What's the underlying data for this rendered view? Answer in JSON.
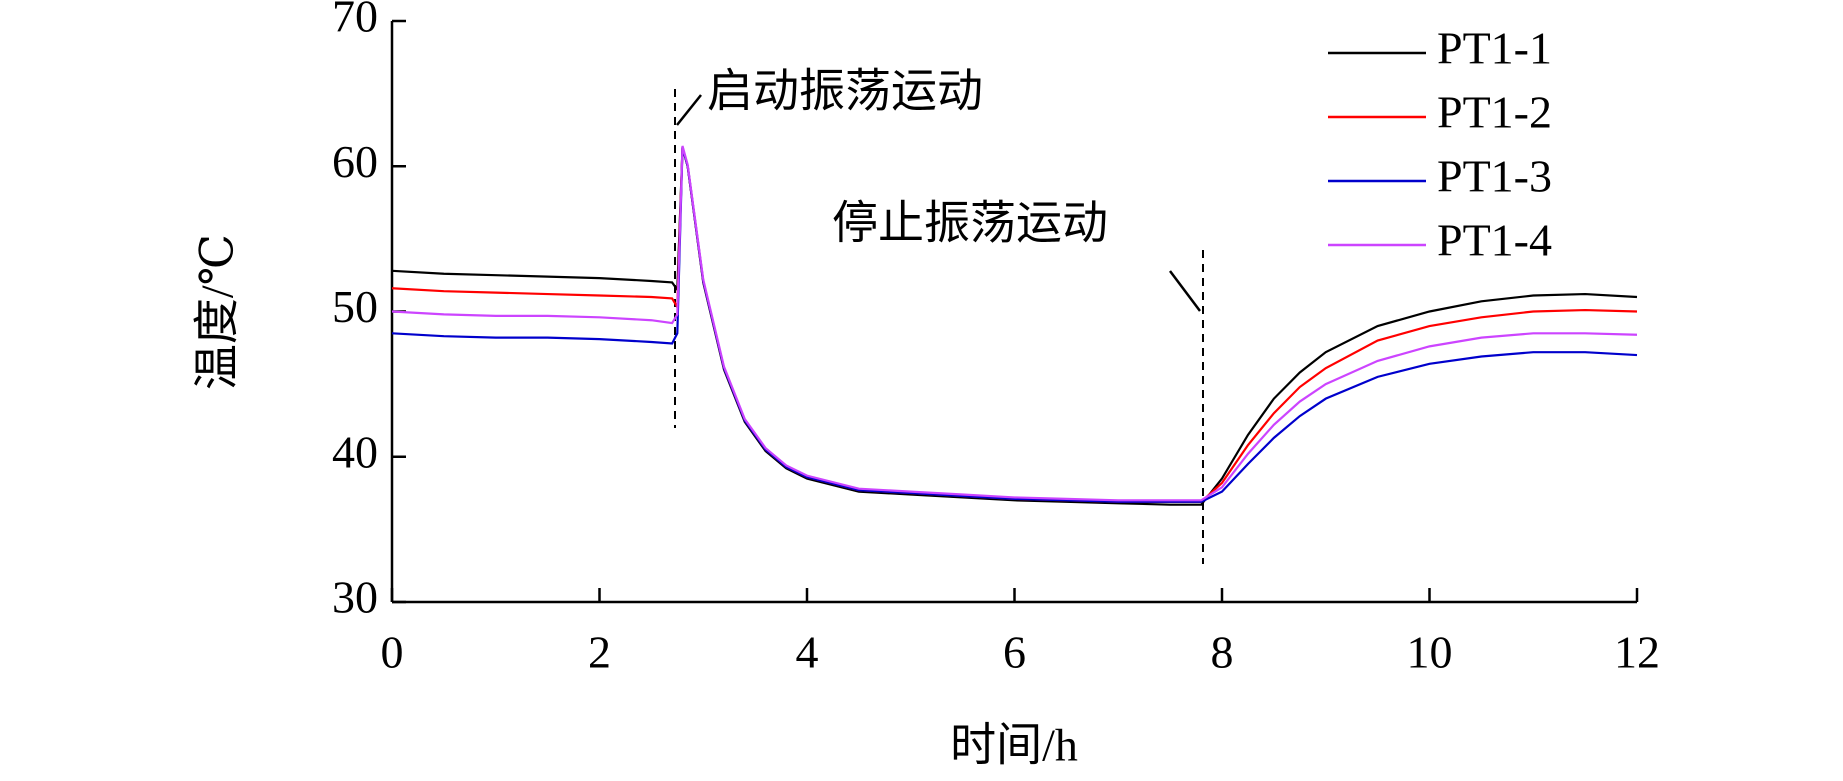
{
  "chart_data": {
    "type": "line",
    "xlabel": "时间/h",
    "ylabel": "温度/℃",
    "annotations": [
      "启动振荡运动",
      "停止振荡运动"
    ],
    "xlim": [
      0,
      12
    ],
    "xticks": [
      0,
      2,
      4,
      6,
      8,
      10,
      12
    ],
    "ylim": [
      30,
      70
    ],
    "yticks": [
      30,
      40,
      50,
      60,
      70
    ],
    "legend": "top-right",
    "x": [
      0,
      0.5,
      1,
      1.5,
      2,
      2.5,
      2.7,
      2.75,
      2.8,
      2.85,
      3.0,
      3.2,
      3.4,
      3.6,
      3.8,
      4.0,
      4.5,
      5,
      5.5,
      6,
      6.5,
      7,
      7.5,
      7.8,
      8.0,
      8.25,
      8.5,
      8.75,
      9,
      9.5,
      10,
      10.5,
      11,
      11.5,
      12
    ],
    "series": [
      {
        "name": "PT1-1",
        "color": "#000000",
        "values": [
          52.8,
          52.6,
          52.5,
          52.4,
          52.3,
          52.1,
          52.0,
          51.5,
          61.3,
          60.0,
          52.0,
          46.0,
          42.4,
          40.4,
          39.2,
          38.5,
          37.6,
          37.4,
          37.2,
          37.0,
          36.9,
          36.8,
          36.7,
          36.7,
          38.5,
          41.5,
          44.0,
          45.8,
          47.2,
          49.0,
          50.0,
          50.7,
          51.1,
          51.2,
          51.0
        ]
      },
      {
        "name": "PT1-2",
        "color": "#ff0000",
        "values": [
          51.6,
          51.4,
          51.3,
          51.2,
          51.1,
          51.0,
          50.9,
          50.3,
          61.3,
          60.0,
          52.1,
          46.1,
          42.5,
          40.5,
          39.3,
          38.6,
          37.7,
          37.5,
          37.3,
          37.1,
          37.0,
          36.9,
          36.9,
          36.9,
          38.2,
          40.8,
          43.0,
          44.8,
          46.1,
          48.0,
          49.0,
          49.6,
          50.0,
          50.1,
          50.0
        ]
      },
      {
        "name": "PT1-3",
        "color": "#0000cc",
        "values": [
          48.5,
          48.3,
          48.2,
          48.2,
          48.1,
          47.9,
          47.8,
          48.5,
          61.3,
          60.0,
          52.1,
          46.1,
          42.5,
          40.5,
          39.3,
          38.6,
          37.7,
          37.5,
          37.3,
          37.1,
          37.0,
          36.9,
          36.9,
          36.9,
          37.6,
          39.5,
          41.3,
          42.8,
          44.0,
          45.5,
          46.4,
          46.9,
          47.2,
          47.2,
          47.0
        ]
      },
      {
        "name": "PT1-4",
        "color": "#cc44ff",
        "values": [
          50.0,
          49.8,
          49.7,
          49.7,
          49.6,
          49.4,
          49.2,
          49.8,
          61.4,
          60.1,
          52.2,
          46.2,
          42.6,
          40.6,
          39.4,
          38.7,
          37.8,
          37.6,
          37.4,
          37.2,
          37.1,
          37.0,
          37.0,
          37.0,
          37.9,
          40.2,
          42.2,
          43.8,
          45.0,
          46.6,
          47.6,
          48.2,
          48.5,
          48.5,
          48.4
        ]
      }
    ]
  }
}
